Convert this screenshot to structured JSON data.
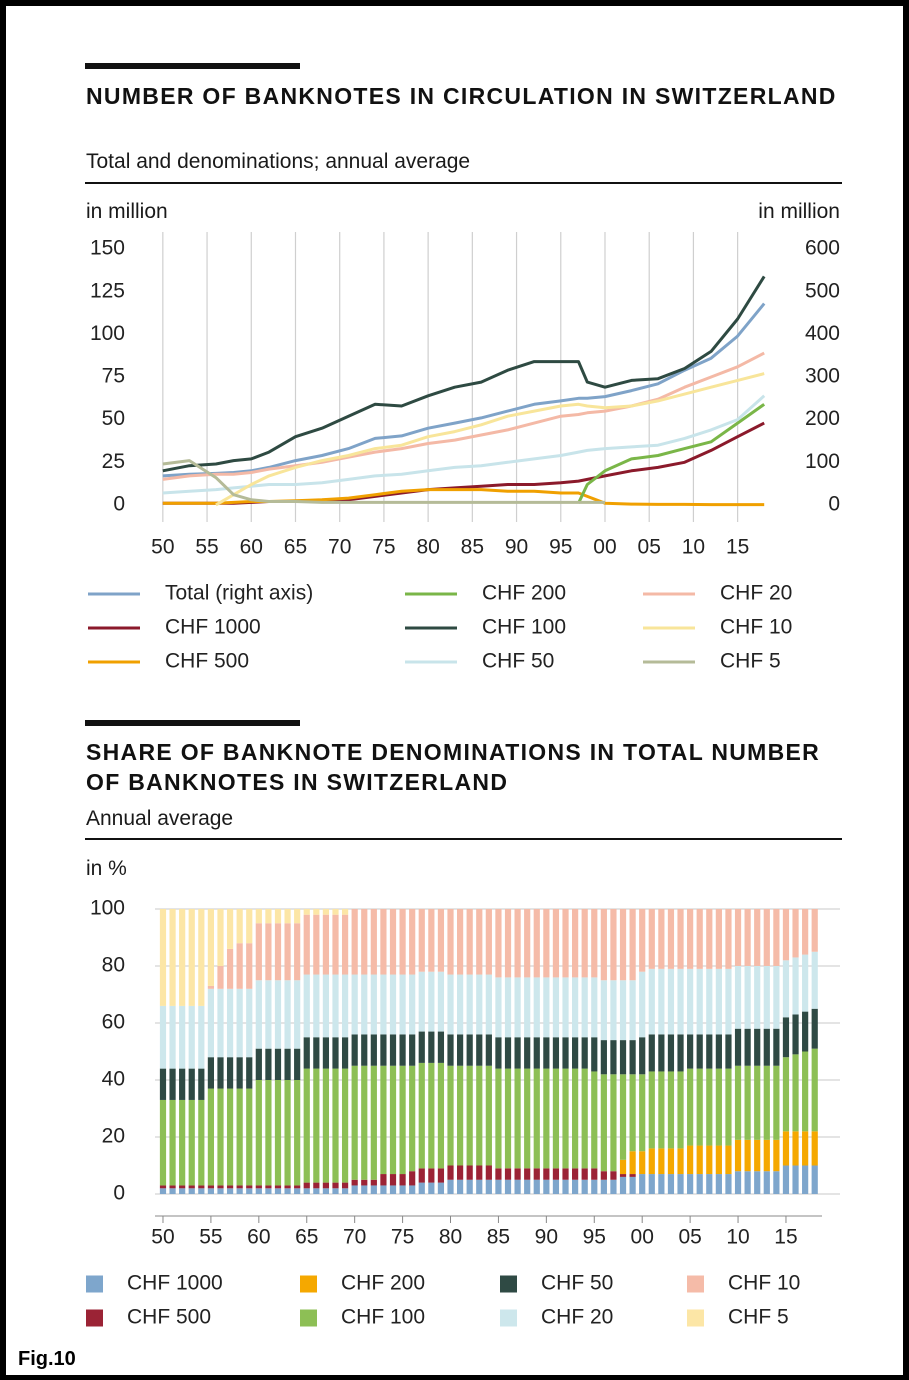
{
  "figure_label": "Fig.10",
  "chart_data": [
    {
      "type": "line",
      "title": "NUMBER OF BANKNOTES IN CIRCULATION IN SWITZERLAND",
      "subtitle": "Total and denominations; annual average",
      "ylabel": "in million",
      "y2label": "in million",
      "grid": "x",
      "x": [
        1950,
        1953,
        1956,
        1958,
        1960,
        1962,
        1965,
        1968,
        1971,
        1974,
        1977,
        1980,
        1983,
        1986,
        1989,
        1992,
        1995,
        1997,
        1998,
        2000,
        2003,
        2006,
        2009,
        2012,
        2015,
        2018
      ],
      "xlim": [
        1949,
        2019
      ],
      "xticks": [
        {
          "value": 1950,
          "label": "50"
        },
        {
          "value": 1955,
          "label": "55"
        },
        {
          "value": 1960,
          "label": "60"
        },
        {
          "value": 1965,
          "label": "65"
        },
        {
          "value": 1970,
          "label": "70"
        },
        {
          "value": 1975,
          "label": "75"
        },
        {
          "value": 1980,
          "label": "80"
        },
        {
          "value": 1985,
          "label": "85"
        },
        {
          "value": 1990,
          "label": "90"
        },
        {
          "value": 1995,
          "label": "95"
        },
        {
          "value": 2000,
          "label": "00"
        },
        {
          "value": 2005,
          "label": "05"
        },
        {
          "value": 2010,
          "label": "10"
        },
        {
          "value": 2015,
          "label": "15"
        }
      ],
      "ylim": [
        -10,
        160
      ],
      "yticks": [
        0,
        25,
        50,
        75,
        100,
        125,
        150
      ],
      "y2lim": [
        -40,
        640
      ],
      "y2ticks": [
        0,
        100,
        200,
        300,
        400,
        500,
        600
      ],
      "series": [
        {
          "name": "Total (right axis)",
          "color": "#7fa3c8",
          "axis": "y2",
          "values": [
            68,
            72,
            74,
            76,
            80,
            88,
            104,
            116,
            132,
            156,
            162,
            180,
            192,
            204,
            220,
            236,
            244,
            250,
            250,
            254,
            268,
            284,
            316,
            344,
            396,
            472
          ]
        },
        {
          "name": "CHF 1000",
          "color": "#8b1a2b",
          "values": [
            1,
            1,
            1,
            1,
            1.5,
            2,
            2,
            2,
            3,
            5,
            7,
            9,
            10,
            11,
            12,
            12,
            13,
            14,
            15,
            17,
            20,
            22,
            25,
            32,
            40,
            48
          ]
        },
        {
          "name": "CHF 500",
          "color": "#f0a000",
          "values": [
            1,
            1,
            1,
            1.5,
            2,
            2,
            2.5,
            3,
            4,
            6,
            8,
            9,
            9,
            9,
            8,
            8,
            7,
            7,
            5,
            1,
            0.5,
            0.3,
            0.3,
            0.2,
            0.2,
            0.2
          ]
        },
        {
          "name": "CHF 200",
          "color": "#7ab648",
          "values": [
            null,
            null,
            null,
            null,
            null,
            null,
            null,
            null,
            null,
            null,
            null,
            null,
            null,
            null,
            null,
            null,
            null,
            1,
            12,
            20,
            27,
            29,
            33,
            37,
            48,
            59
          ]
        },
        {
          "name": "CHF 100",
          "color": "#2e4a42",
          "values": [
            20,
            23,
            24,
            26,
            27,
            31,
            40,
            45,
            52,
            59,
            58,
            64,
            69,
            72,
            79,
            84,
            84,
            84,
            72,
            69,
            73,
            74,
            80,
            90,
            109,
            134
          ]
        },
        {
          "name": "CHF 50",
          "color": "#c8e4ea",
          "values": [
            7,
            8,
            9,
            10,
            11,
            12,
            12,
            13,
            15,
            17,
            18,
            20,
            22,
            23,
            25,
            27,
            29,
            31,
            32,
            33,
            34,
            35,
            39,
            44,
            50,
            64
          ]
        },
        {
          "name": "CHF 20",
          "color": "#f4b9a6",
          "values": [
            15,
            17,
            18,
            18,
            19,
            21,
            23,
            25,
            28,
            31,
            33,
            36,
            38,
            41,
            44,
            48,
            52,
            53,
            54,
            55,
            58,
            62,
            69,
            75,
            81,
            89
          ]
        },
        {
          "name": "CHF 10",
          "color": "#f8e59a",
          "values": [
            null,
            null,
            0,
            6,
            12,
            17,
            22,
            26,
            29,
            33,
            35,
            40,
            43,
            47,
            52,
            55,
            58,
            59,
            58,
            57,
            58,
            61,
            65,
            69,
            73,
            77
          ]
        },
        {
          "name": "CHF 5",
          "color": "#b5bb98",
          "values": [
            24,
            26,
            16,
            6,
            3,
            2,
            2,
            1.5,
            1.5,
            1.5,
            1.5,
            1.5,
            1.5,
            1.5,
            1.5,
            1.5,
            1.5,
            1.5,
            1.5,
            1.5,
            null,
            null,
            null,
            null,
            null,
            null
          ]
        }
      ]
    },
    {
      "type": "bar",
      "stacked": true,
      "title": "SHARE OF BANKNOTE DENOMINATIONS IN TOTAL NUMBER OF BANKNOTES IN SWITZERLAND",
      "subtitle": "Annual average",
      "ylabel": "in %",
      "grid": "y",
      "x": [
        1950,
        1951,
        1952,
        1953,
        1954,
        1955,
        1956,
        1957,
        1958,
        1959,
        1960,
        1961,
        1962,
        1963,
        1964,
        1965,
        1966,
        1967,
        1968,
        1969,
        1970,
        1971,
        1972,
        1973,
        1974,
        1975,
        1976,
        1977,
        1978,
        1979,
        1980,
        1981,
        1982,
        1983,
        1984,
        1985,
        1986,
        1987,
        1988,
        1989,
        1990,
        1991,
        1992,
        1993,
        1994,
        1995,
        1996,
        1997,
        1998,
        1999,
        2000,
        2001,
        2002,
        2003,
        2004,
        2005,
        2006,
        2007,
        2008,
        2009,
        2010,
        2011,
        2012,
        2013,
        2014,
        2015,
        2016,
        2017,
        2018
      ],
      "xlim": [
        1949,
        2019
      ],
      "xticks": [
        {
          "value": 1950,
          "label": "50"
        },
        {
          "value": 1955,
          "label": "55"
        },
        {
          "value": 1960,
          "label": "60"
        },
        {
          "value": 1965,
          "label": "65"
        },
        {
          "value": 1970,
          "label": "70"
        },
        {
          "value": 1975,
          "label": "75"
        },
        {
          "value": 1980,
          "label": "80"
        },
        {
          "value": 1985,
          "label": "85"
        },
        {
          "value": 1990,
          "label": "90"
        },
        {
          "value": 1995,
          "label": "95"
        },
        {
          "value": 2000,
          "label": "00"
        },
        {
          "value": 2005,
          "label": "05"
        },
        {
          "value": 2010,
          "label": "10"
        },
        {
          "value": 2015,
          "label": "15"
        }
      ],
      "ylim": [
        0,
        100
      ],
      "yticks": [
        0,
        20,
        40,
        60,
        80,
        100
      ],
      "series": [
        {
          "name": "CHF 1000",
          "color": "#7ea6cc",
          "values": [
            2,
            2,
            2,
            2,
            2,
            2,
            2,
            2,
            2,
            2,
            2,
            2,
            2,
            2,
            2,
            2,
            2,
            2,
            2,
            2,
            3,
            3,
            3,
            3,
            3,
            3,
            3,
            4,
            4,
            4,
            5,
            5,
            5,
            5,
            5,
            5,
            5,
            5,
            5,
            5,
            5,
            5,
            5,
            5,
            5,
            5,
            5,
            5,
            6,
            6,
            7,
            7,
            7,
            7,
            7,
            7,
            7,
            7,
            7,
            7,
            8,
            8,
            8,
            8,
            8,
            10,
            10,
            10,
            10
          ]
        },
        {
          "name": "CHF 500",
          "color": "#9b2335",
          "values": [
            1,
            1,
            1,
            1,
            1,
            1,
            1,
            1,
            1,
            1,
            1,
            1,
            1,
            1,
            1,
            2,
            2,
            2,
            2,
            2,
            2,
            2,
            2,
            4,
            4,
            4,
            5,
            5,
            5,
            5,
            5,
            5,
            5,
            5,
            5,
            4,
            4,
            4,
            4,
            4,
            4,
            4,
            4,
            4,
            4,
            4,
            3,
            3,
            1,
            1,
            0,
            0,
            0,
            0,
            0,
            0,
            0,
            0,
            0,
            0,
            0,
            0,
            0,
            0,
            0,
            0,
            0,
            0,
            0
          ]
        },
        {
          "name": "CHF 200",
          "color": "#f5a800",
          "values": [
            0,
            0,
            0,
            0,
            0,
            0,
            0,
            0,
            0,
            0,
            0,
            0,
            0,
            0,
            0,
            0,
            0,
            0,
            0,
            0,
            0,
            0,
            0,
            0,
            0,
            0,
            0,
            0,
            0,
            0,
            0,
            0,
            0,
            0,
            0,
            0,
            0,
            0,
            0,
            0,
            0,
            0,
            0,
            0,
            0,
            0,
            0,
            0,
            5,
            8,
            8,
            9,
            9,
            9,
            9,
            10,
            10,
            10,
            10,
            10,
            11,
            11,
            11,
            11,
            11,
            12,
            12,
            12,
            12
          ]
        },
        {
          "name": "CHF 100",
          "color": "#8dbf55",
          "values": [
            30,
            30,
            30,
            30,
            30,
            34,
            34,
            34,
            34,
            34,
            37,
            37,
            37,
            37,
            37,
            40,
            40,
            40,
            40,
            40,
            40,
            40,
            40,
            38,
            38,
            38,
            37,
            37,
            37,
            37,
            35,
            35,
            35,
            35,
            35,
            35,
            35,
            35,
            35,
            35,
            35,
            35,
            35,
            35,
            35,
            34,
            34,
            34,
            30,
            27,
            27,
            27,
            27,
            27,
            27,
            27,
            27,
            27,
            27,
            27,
            26,
            26,
            26,
            26,
            26,
            26,
            27,
            28,
            29
          ]
        },
        {
          "name": "CHF 50",
          "color": "#2f4a44",
          "values": [
            11,
            11,
            11,
            11,
            11,
            11,
            11,
            11,
            11,
            11,
            11,
            11,
            11,
            11,
            11,
            11,
            11,
            11,
            11,
            11,
            11,
            11,
            11,
            11,
            11,
            11,
            11,
            11,
            11,
            11,
            11,
            11,
            11,
            11,
            11,
            11,
            11,
            11,
            11,
            11,
            11,
            11,
            11,
            11,
            11,
            12,
            12,
            12,
            12,
            12,
            13,
            13,
            13,
            13,
            13,
            12,
            12,
            12,
            12,
            12,
            13,
            13,
            13,
            13,
            13,
            14,
            14,
            14,
            14
          ]
        },
        {
          "name": "CHF 20",
          "color": "#cde7ec",
          "values": [
            22,
            22,
            22,
            22,
            22,
            24,
            24,
            24,
            24,
            24,
            24,
            24,
            24,
            24,
            24,
            22,
            22,
            22,
            22,
            22,
            21,
            21,
            21,
            21,
            21,
            21,
            21,
            21,
            21,
            21,
            21,
            21,
            21,
            21,
            21,
            21,
            21,
            21,
            21,
            21,
            21,
            21,
            21,
            21,
            21,
            21,
            21,
            21,
            21,
            21,
            23,
            23,
            23,
            23,
            23,
            23,
            23,
            23,
            23,
            23,
            22,
            22,
            22,
            22,
            22,
            20,
            20,
            20,
            20
          ]
        },
        {
          "name": "CHF 10",
          "color": "#f5bba8",
          "values": [
            0,
            0,
            0,
            0,
            0,
            1,
            8,
            14,
            16,
            16,
            20,
            20,
            20,
            20,
            20,
            21,
            21,
            21,
            21,
            21,
            23,
            23,
            23,
            23,
            23,
            23,
            23,
            22,
            22,
            22,
            23,
            23,
            23,
            23,
            23,
            24,
            24,
            24,
            24,
            24,
            24,
            24,
            24,
            24,
            24,
            24,
            25,
            25,
            25,
            25,
            22,
            21,
            21,
            21,
            21,
            21,
            21,
            21,
            21,
            21,
            20,
            20,
            20,
            20,
            20,
            18,
            17,
            16,
            15
          ]
        },
        {
          "name": "CHF 5",
          "color": "#fce6a6",
          "values": [
            34,
            34,
            34,
            34,
            34,
            27,
            20,
            14,
            12,
            12,
            5,
            5,
            5,
            5,
            5,
            2,
            2,
            2,
            2,
            2,
            0,
            0,
            0,
            0,
            0,
            0,
            0,
            0,
            0,
            0,
            0,
            0,
            0,
            0,
            0,
            0,
            0,
            0,
            0,
            0,
            0,
            0,
            0,
            0,
            0,
            0,
            0,
            0,
            0,
            0,
            0,
            0,
            0,
            0,
            0,
            0,
            0,
            0,
            0,
            0,
            0,
            0,
            0,
            0,
            0,
            0,
            0,
            0,
            0
          ]
        }
      ]
    }
  ]
}
